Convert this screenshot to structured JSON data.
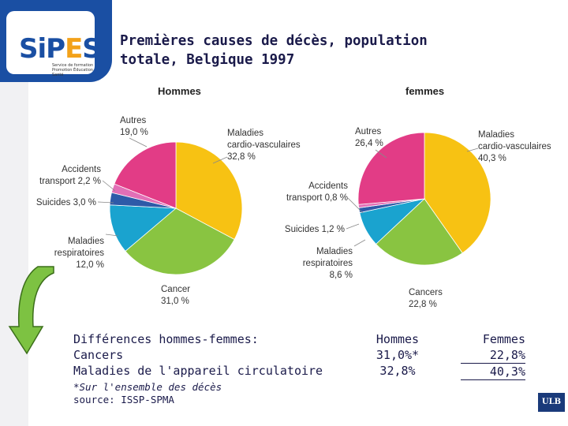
{
  "logo": {
    "name": "SIPES",
    "subtitle": "Service de formation Promotion Éducation Santé"
  },
  "title": "Premières causes de décès, population totale, Belgique 1997",
  "chart_data": [
    {
      "type": "pie",
      "title": "Hommes",
      "slices": [
        {
          "label": "Maladies cardio-vasculaires",
          "value": 32.8,
          "label_text": [
            "Maladies",
            "cardio-vasculaires",
            "32,8 %"
          ],
          "color": "#f7c213"
        },
        {
          "label": "Cancer",
          "value": 31.0,
          "label_text": [
            "Cancer",
            "31,0 %"
          ],
          "color": "#89c441"
        },
        {
          "label": "Maladies respiratoires",
          "value": 12.0,
          "label_text": [
            "Maladies",
            "respiratoires",
            "12,0 %"
          ],
          "color": "#1aa3cf"
        },
        {
          "label": "Suicides",
          "value": 3.0,
          "label_text": [
            "Suicides 3,0 %"
          ],
          "color": "#2e5aa8"
        },
        {
          "label": "Accidents transport",
          "value": 2.2,
          "label_text": [
            "Accidents",
            "transport 2,2 %"
          ],
          "color": "#e26fb6"
        },
        {
          "label": "Autres",
          "value": 19.0,
          "label_text": [
            "Autres",
            "19,0 %"
          ],
          "color": "#e23c86"
        }
      ]
    },
    {
      "type": "pie",
      "title": "femmes",
      "slices": [
        {
          "label": "Maladies cardio-vasculaires",
          "value": 40.3,
          "label_text": [
            "Maladies",
            "cardio-vasculaires",
            "40,3 %"
          ],
          "color": "#f7c213"
        },
        {
          "label": "Cancers",
          "value": 22.8,
          "label_text": [
            "Cancers",
            "22,8 %"
          ],
          "color": "#89c441"
        },
        {
          "label": "Maladies respiratoires",
          "value": 8.6,
          "label_text": [
            "Maladies",
            "respiratoires",
            "8,6 %"
          ],
          "color": "#1aa3cf"
        },
        {
          "label": "Suicides",
          "value": 1.2,
          "label_text": [
            "Suicides 1,2 %"
          ],
          "color": "#2e5aa8"
        },
        {
          "label": "Accidents transport",
          "value": 0.8,
          "label_text": [
            "Accidents",
            "transport 0,8 %"
          ],
          "color": "#e26fb6"
        },
        {
          "label": "Autres",
          "value": 26.4,
          "label_text": [
            "Autres",
            "26,4 %"
          ],
          "color": "#e23c86"
        }
      ]
    }
  ],
  "differences": {
    "heading": "Différences hommes-femmes:",
    "rows": [
      "Cancers",
      "Maladies de l'appareil circulatoire"
    ],
    "hommes_header": "Hommes",
    "hommes_values": [
      "31,0%*",
      "32,8%"
    ],
    "femmes_header": "Femmes",
    "femmes_values": [
      "22,8%",
      "40,3%"
    ]
  },
  "footnote": {
    "note": "*Sur l'ensemble des décès",
    "source": "source: ISSP-SPMA"
  },
  "badge": "ULB",
  "colors": {
    "title": "#1a1a4a",
    "logo_blue": "#1a4fa3",
    "arrow_green": "#7dc242"
  }
}
